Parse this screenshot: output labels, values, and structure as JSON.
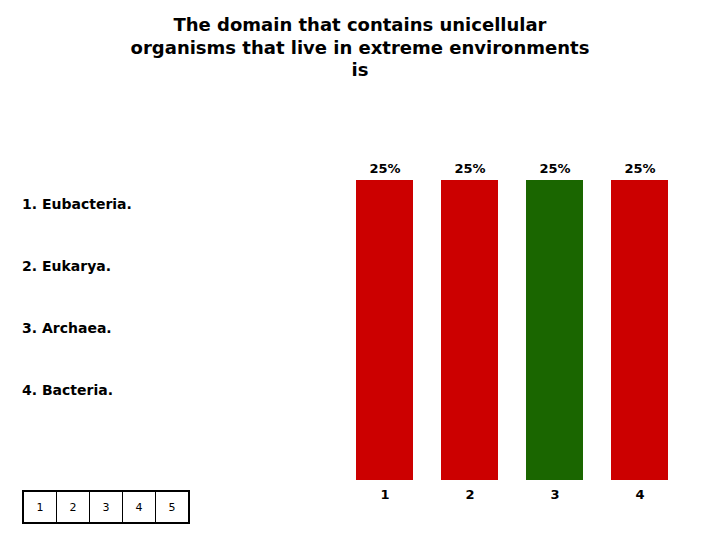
{
  "chart_data": {
    "type": "bar",
    "title": "The domain that contains unicellular\norganisms that live in extreme environments\nis",
    "categories": [
      "1",
      "2",
      "3",
      "4"
    ],
    "values": [
      25,
      25,
      25,
      25
    ],
    "value_labels": [
      "25%",
      "25%",
      "25%",
      "25%"
    ],
    "colors": [
      "#cc0000",
      "#cc0000",
      "#1a6600",
      "#cc0000"
    ],
    "ylim": [
      0,
      25
    ],
    "data_labels": true,
    "tick_labels": "x",
    "annotations": [
      "1.  Eubacteria.",
      "2.  Eukarya.",
      "3.  Archaea.",
      "4.  Bacteria."
    ],
    "nav_boxes": [
      "1",
      "2",
      "3",
      "4",
      "5"
    ]
  }
}
